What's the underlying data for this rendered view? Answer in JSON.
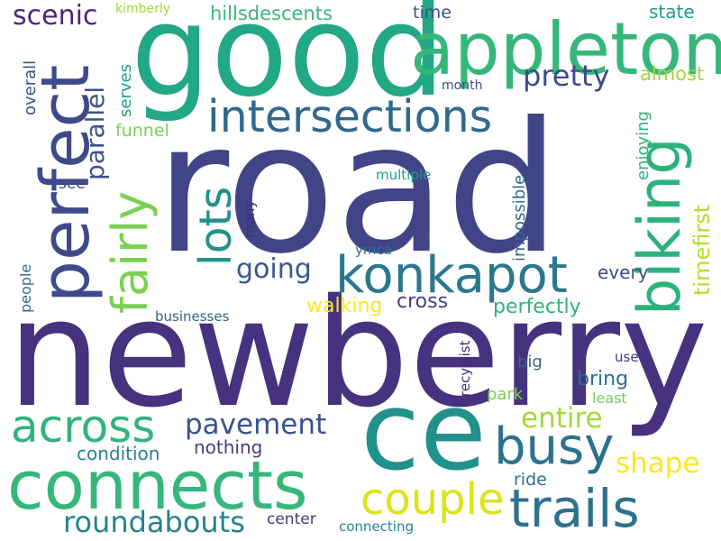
{
  "words": [
    {
      "text": "road",
      "color": "#414487",
      "vertical": false
    },
    {
      "text": "newberry",
      "color": "#46327e",
      "vertical": false
    },
    {
      "text": "good",
      "color": "#22a884",
      "vertical": false
    },
    {
      "text": "ce",
      "color": "#21918c",
      "vertical": false
    },
    {
      "text": "appleton",
      "color": "#35b779",
      "vertical": false
    },
    {
      "text": "connects",
      "color": "#35b779",
      "vertical": false
    },
    {
      "text": "perfect",
      "color": "#3e4a89",
      "vertical": true
    },
    {
      "text": "biking",
      "color": "#2db27d",
      "vertical": true
    },
    {
      "text": "konkapot",
      "color": "#2a788e",
      "vertical": false
    },
    {
      "text": "intersections",
      "color": "#31688e",
      "vertical": false
    },
    {
      "text": "trails",
      "color": "#2c728e",
      "vertical": false
    },
    {
      "text": "busy",
      "color": "#2c728e",
      "vertical": false
    },
    {
      "text": "across",
      "color": "#2fb47c",
      "vertical": false
    },
    {
      "text": "couple",
      "color": "#dde318",
      "vertical": false
    },
    {
      "text": "fairly",
      "color": "#7ad151",
      "vertical": true
    },
    {
      "text": "lots",
      "color": "#21918c",
      "vertical": true
    },
    {
      "text": "roundabouts",
      "color": "#26828e",
      "vertical": false
    },
    {
      "text": "pavement",
      "color": "#3b528b",
      "vertical": false
    },
    {
      "text": "entire",
      "color": "#a0da39",
      "vertical": false
    },
    {
      "text": "shape",
      "color": "#fde725",
      "vertical": false
    },
    {
      "text": "scenic",
      "color": "#482878",
      "vertical": false
    },
    {
      "text": "parallel",
      "color": "#3b528b",
      "vertical": true
    },
    {
      "text": "pretty",
      "color": "#3e4989",
      "vertical": false
    },
    {
      "text": "timefirst",
      "color": "#b5de2b",
      "vertical": true
    },
    {
      "text": "going",
      "color": "#38598c",
      "vertical": false
    },
    {
      "text": "hillsdescents",
      "color": "#37b878",
      "vertical": false
    },
    {
      "text": "perfectly",
      "color": "#2fb47c",
      "vertical": false
    },
    {
      "text": "walking",
      "color": "#fde725",
      "vertical": false
    },
    {
      "text": "cross",
      "color": "#424086",
      "vertical": false
    },
    {
      "text": "bring",
      "color": "#2e6e8e",
      "vertical": false
    },
    {
      "text": "condition",
      "color": "#26828e",
      "vertical": false
    },
    {
      "text": "nothing",
      "color": "#424086",
      "vertical": false
    },
    {
      "text": "every",
      "color": "#3e4a89",
      "vertical": false
    },
    {
      "text": "enjoying",
      "color": "#2fb47c",
      "vertical": true
    },
    {
      "text": "almost",
      "color": "#a0da39",
      "vertical": false
    },
    {
      "text": "state",
      "color": "#1f9e89",
      "vertical": false
    },
    {
      "text": "time",
      "color": "#3b528b",
      "vertical": false
    },
    {
      "text": "impossible",
      "color": "#31688e",
      "vertical": true
    },
    {
      "text": "overall",
      "color": "#3b528b",
      "vertical": true
    },
    {
      "text": "serves",
      "color": "#1f9e89",
      "vertical": true
    },
    {
      "text": "funnel",
      "color": "#7ad151",
      "vertical": false
    },
    {
      "text": "see",
      "color": "#3e4989",
      "vertical": false
    },
    {
      "text": "many",
      "color": "#472d7b",
      "vertical": true
    },
    {
      "text": "people",
      "color": "#31688e",
      "vertical": true
    },
    {
      "text": "businesses",
      "color": "#355f8d",
      "vertical": false
    },
    {
      "text": "multiple",
      "color": "#1f9e89",
      "vertical": false
    },
    {
      "text": "ymca",
      "color": "#2c728e",
      "vertical": false
    },
    {
      "text": "center",
      "color": "#453781",
      "vertical": false
    },
    {
      "text": "connecting",
      "color": "#26828e",
      "vertical": false
    },
    {
      "text": "ride",
      "color": "#2c728e",
      "vertical": false
    },
    {
      "text": "park",
      "color": "#7ad151",
      "vertical": false
    },
    {
      "text": "big",
      "color": "#31688e",
      "vertical": false
    },
    {
      "text": "least",
      "color": "#73d056",
      "vertical": false
    },
    {
      "text": "use",
      "color": "#453781",
      "vertical": false
    },
    {
      "text": "recyclist",
      "color": "#482878",
      "vertical": true
    },
    {
      "text": "kimberly",
      "color": "#a0da39",
      "vertical": false
    },
    {
      "text": "month",
      "color": "#3e4989",
      "vertical": false
    }
  ]
}
